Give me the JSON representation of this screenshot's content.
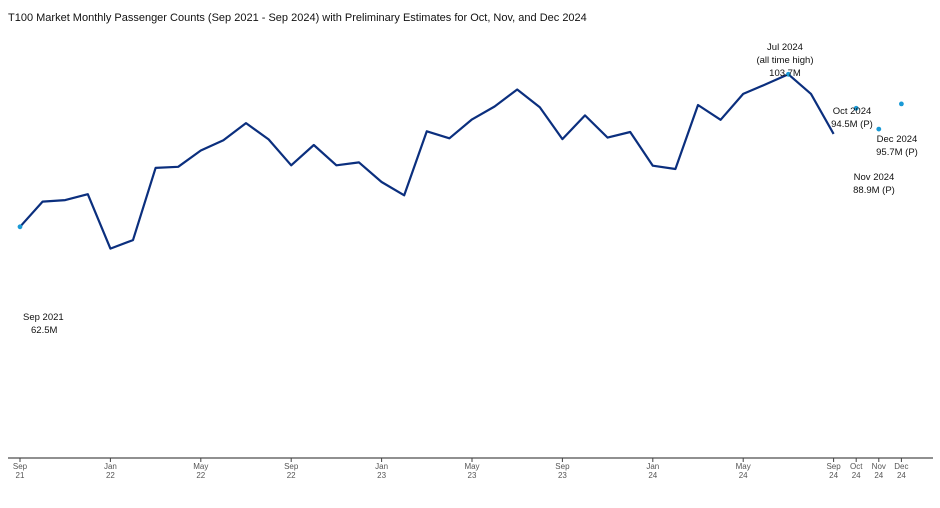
{
  "chart_data": {
    "type": "line",
    "title": "T100 Market Monthly Passenger Counts (Sep 2021 - Sep 2024) with Preliminary Estimates for Oct, Nov, and Dec 2024",
    "xlabel": "",
    "ylabel": "",
    "ylim": [
      0,
      110
    ],
    "grid": false,
    "x": [
      "Sep 2021",
      "Oct 2021",
      "Nov 2021",
      "Dec 2021",
      "Jan 2022",
      "Feb 2022",
      "Mar 2022",
      "Apr 2022",
      "May 2022",
      "Jun 2022",
      "Jul 2022",
      "Aug 2022",
      "Sep 2022",
      "Oct 2022",
      "Nov 2022",
      "Dec 2022",
      "Jan 2023",
      "Feb 2023",
      "Mar 2023",
      "Apr 2023",
      "May 2023",
      "Jun 2023",
      "Jul 2023",
      "Aug 2023",
      "Sep 2023",
      "Oct 2023",
      "Nov 2023",
      "Dec 2023",
      "Jan 2024",
      "Feb 2024",
      "Mar 2024",
      "Apr 2024",
      "May 2024",
      "Jun 2024",
      "Jul 2024",
      "Aug 2024",
      "Sep 2024"
    ],
    "series": [
      {
        "values": [
          62.5,
          69.3,
          69.7,
          71.3,
          56.6,
          58.9,
          78.4,
          78.7,
          83.1,
          85.9,
          90.5,
          86.1,
          79.1,
          84.6,
          79.1,
          79.9,
          74.6,
          71.0,
          88.3,
          86.4,
          91.5,
          95.0,
          99.6,
          94.8,
          86.2,
          92.6,
          86.6,
          88.1,
          79.0,
          78.1,
          95.4,
          91.4,
          98.4,
          101.0,
          103.7,
          98.4,
          87.6
        ]
      }
    ],
    "preliminary": {
      "x": [
        "Oct 2024",
        "Nov 2024",
        "Dec 2024"
      ],
      "values": [
        94.5,
        88.9,
        95.7
      ]
    },
    "line_color": "#0b2f7e",
    "point_color": "#1a9ad6",
    "tick_labels": [
      {
        "index": 0,
        "month": "Sep",
        "year": "21"
      },
      {
        "index": 4,
        "month": "Jan",
        "year": "22"
      },
      {
        "index": 8,
        "month": "May",
        "year": "22"
      },
      {
        "index": 12,
        "month": "Sep",
        "year": "22"
      },
      {
        "index": 16,
        "month": "Jan",
        "year": "23"
      },
      {
        "index": 20,
        "month": "May",
        "year": "23"
      },
      {
        "index": 24,
        "month": "Sep",
        "year": "23"
      },
      {
        "index": 28,
        "month": "Jan",
        "year": "24"
      },
      {
        "index": 32,
        "month": "May",
        "year": "24"
      },
      {
        "index": 36,
        "month": "Sep",
        "year": "24"
      },
      {
        "index": 37,
        "month": "Oct",
        "year": "24"
      },
      {
        "index": 38,
        "month": "Nov",
        "year": "24"
      },
      {
        "index": 39,
        "month": "Dec",
        "year": "24"
      }
    ],
    "annotations": {
      "sep2021": [
        "Sep 2021",
        "62.5M"
      ],
      "jul2024": [
        "Jul 2024",
        "(all time high)",
        "103.7M"
      ],
      "oct2024": [
        "Oct 2024",
        "94.5M (P)"
      ],
      "nov2024": [
        "Nov 2024",
        "88.9M (P)"
      ],
      "dec2024": [
        "Dec 2024",
        "95.7M (P)"
      ]
    }
  }
}
